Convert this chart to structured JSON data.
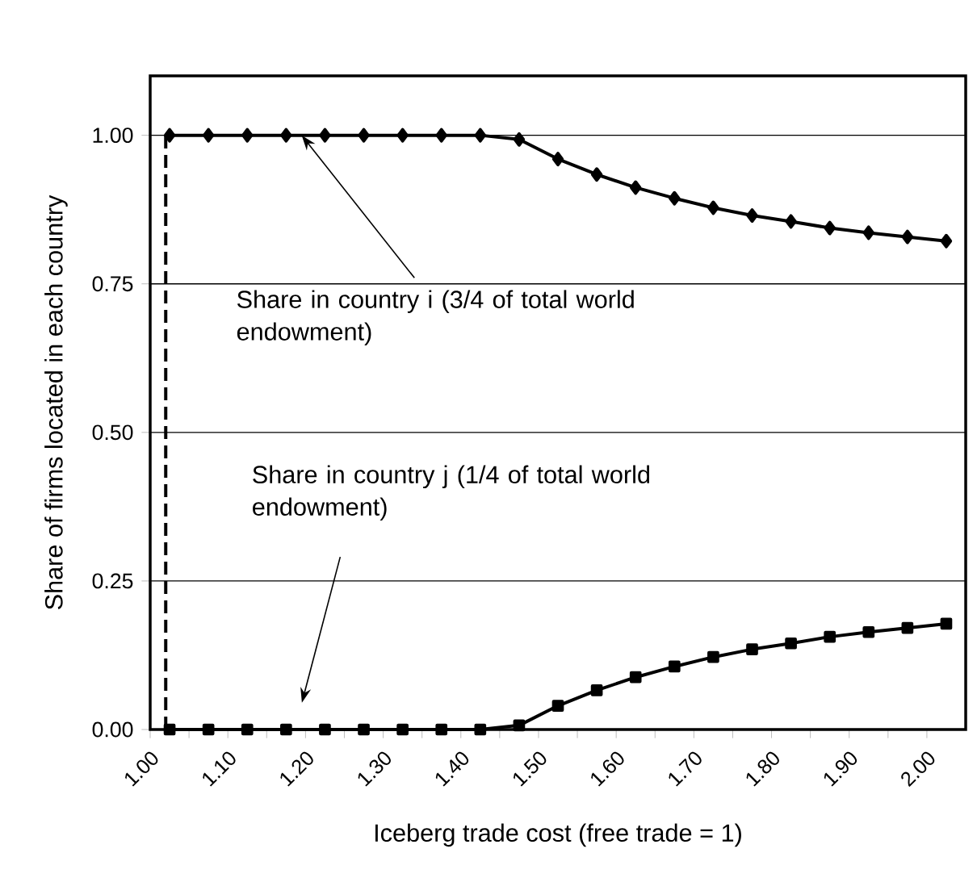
{
  "chart_data": {
    "type": "line",
    "xlabel": "Iceberg trade cost  (free trade = 1)",
    "ylabel": "Share of firms located in each country",
    "x": [
      1.025,
      1.075,
      1.125,
      1.175,
      1.225,
      1.275,
      1.325,
      1.375,
      1.425,
      1.475,
      1.525,
      1.575,
      1.625,
      1.675,
      1.725,
      1.775,
      1.825,
      1.875,
      1.925,
      1.975,
      2.025
    ],
    "series": [
      {
        "color": "#000000",
        "marker": "diamond",
        "values": [
          1.0,
          1.0,
          1.0,
          1.0,
          1.0,
          1.0,
          1.0,
          1.0,
          1.0,
          0.993,
          0.96,
          0.934,
          0.912,
          0.894,
          0.878,
          0.865,
          0.855,
          0.844,
          0.836,
          0.829,
          0.822
        ]
      },
      {
        "color": "#000000",
        "marker": "square",
        "values": [
          0.0,
          0.0,
          0.0,
          0.0,
          0.0,
          0.0,
          0.0,
          0.0,
          0.0,
          0.007,
          0.04,
          0.066,
          0.088,
          0.106,
          0.122,
          0.135,
          0.145,
          0.156,
          0.164,
          0.171,
          0.178
        ]
      },
      {
        "color": "#000000",
        "marker": "none",
        "line_style": "dashed",
        "x": [
          1.02,
          1.02
        ],
        "values": [
          0.0,
          1.0
        ]
      }
    ],
    "xlim": [
      1.0,
      2.05
    ],
    "ylim": [
      0,
      1.1
    ],
    "xticks": [
      {
        "value": 1.0,
        "label": "1.00"
      },
      {
        "value": 1.05,
        "label": null
      },
      {
        "value": 1.1,
        "label": "1.10"
      },
      {
        "value": 1.15,
        "label": null
      },
      {
        "value": 1.2,
        "label": "1.20"
      },
      {
        "value": 1.25,
        "label": null
      },
      {
        "value": 1.3,
        "label": "1.30"
      },
      {
        "value": 1.35,
        "label": null
      },
      {
        "value": 1.4,
        "label": "1.40"
      },
      {
        "value": 1.45,
        "label": null
      },
      {
        "value": 1.5,
        "label": "1.50"
      },
      {
        "value": 1.55,
        "label": null
      },
      {
        "value": 1.6,
        "label": "1.60"
      },
      {
        "value": 1.65,
        "label": null
      },
      {
        "value": 1.7,
        "label": "1.70"
      },
      {
        "value": 1.75,
        "label": null
      },
      {
        "value": 1.8,
        "label": "1.80"
      },
      {
        "value": 1.85,
        "label": null
      },
      {
        "value": 1.9,
        "label": "1.90"
      },
      {
        "value": 1.95,
        "label": null
      },
      {
        "value": 2.0,
        "label": "2.00"
      }
    ],
    "yticks": [
      {
        "value": 0,
        "label": "0.00"
      },
      {
        "value": 0.25,
        "label": "0.25"
      },
      {
        "value": 0.5,
        "label": "0.50"
      },
      {
        "value": 0.75,
        "label": "0.75"
      },
      {
        "value": 1.0,
        "label": "1.00"
      }
    ],
    "grid": "y",
    "annotations": [
      {
        "text": "Share in country i (3/4 of total world endowment)",
        "x": 1.195,
        "y": 1.0
      },
      "Share in country j (1/4 of total world endowment)"
    ]
  }
}
